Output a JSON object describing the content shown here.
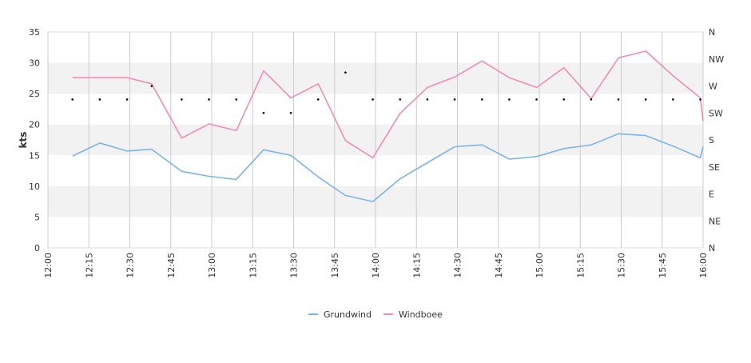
{
  "chart_data": {
    "type": "line",
    "title": "",
    "xlabel": "",
    "ylabel": "kts",
    "ylim": [
      0,
      35
    ],
    "yticks": [
      "0",
      "5",
      "10",
      "15",
      "20",
      "25",
      "30",
      "35"
    ],
    "xlim": [
      "12:00",
      "16:00"
    ],
    "xticks": [
      "12:00",
      "12:15",
      "12:30",
      "12:45",
      "13:00",
      "13:15",
      "13:30",
      "13:45",
      "14:00",
      "14:15",
      "14:30",
      "14:45",
      "15:00",
      "15:15",
      "15:30",
      "15:45",
      "16:00"
    ],
    "y2_ticks": [
      "N",
      "NE",
      "E",
      "SE",
      "S",
      "SW",
      "W",
      "NW",
      "N"
    ],
    "grid": "vertical lines and alternating horizontal bands",
    "legend_position": "bottom-center",
    "series": [
      {
        "name": "Grundwind",
        "color": "#7cb5ec",
        "x": [
          "12:09",
          "12:19",
          "12:29",
          "12:38",
          "12:49",
          "12:59",
          "13:09",
          "13:19",
          "13:29",
          "13:39",
          "13:49",
          "13:59",
          "14:09",
          "14:19",
          "14:29",
          "14:39",
          "14:49",
          "14:59",
          "15:09",
          "15:19",
          "15:29",
          "15:39",
          "15:49",
          "15:59",
          "16:00"
        ],
        "values": [
          14.9,
          17.0,
          15.7,
          16.0,
          12.4,
          11.6,
          11.1,
          15.9,
          15.0,
          11.5,
          8.5,
          7.5,
          11.2,
          13.8,
          16.4,
          16.7,
          14.4,
          14.8,
          16.1,
          16.7,
          18.5,
          18.2,
          16.5,
          14.6,
          16.4
        ]
      },
      {
        "name": "Windboee",
        "color": "#f28bb5",
        "x": [
          "12:09",
          "12:19",
          "12:29",
          "12:38",
          "12:49",
          "12:59",
          "13:09",
          "13:19",
          "13:29",
          "13:39",
          "13:49",
          "13:59",
          "14:09",
          "14:19",
          "14:29",
          "14:39",
          "14:49",
          "14:59",
          "15:09",
          "15:19",
          "15:29",
          "15:39",
          "15:49",
          "15:59",
          "16:00"
        ],
        "values": [
          27.6,
          27.6,
          27.6,
          26.6,
          17.8,
          20.1,
          19.0,
          28.7,
          24.3,
          26.6,
          17.4,
          14.6,
          21.8,
          26.0,
          27.7,
          30.3,
          27.6,
          26.0,
          29.2,
          24.2,
          30.8,
          31.9,
          27.9,
          24.3,
          20.6
        ]
      },
      {
        "name": "",
        "type": "scatter",
        "color": "#000000",
        "axis": "secondary",
        "x": [
          "12:09",
          "12:19",
          "12:29",
          "12:38",
          "12:49",
          "12:59",
          "13:09",
          "13:19",
          "13:29",
          "13:39",
          "13:49",
          "13:59",
          "14:09",
          "14:19",
          "14:29",
          "14:39",
          "14:49",
          "14:59",
          "15:09",
          "15:19",
          "15:29",
          "15:39",
          "15:49",
          "15:59"
        ],
        "values": [
          "SW-W",
          "SW-W",
          "SW-W",
          "W",
          "SW-W",
          "SW-W",
          "SW-W",
          "SW",
          "SW",
          "SW-W",
          "W-NW",
          "SW-W",
          "SW-W",
          "SW-W",
          "SW-W",
          "SW-W",
          "SW-W",
          "SW-W",
          "SW-W",
          "SW-W",
          "SW-W",
          "SW-W",
          "SW-W",
          "SW-W"
        ]
      }
    ]
  }
}
